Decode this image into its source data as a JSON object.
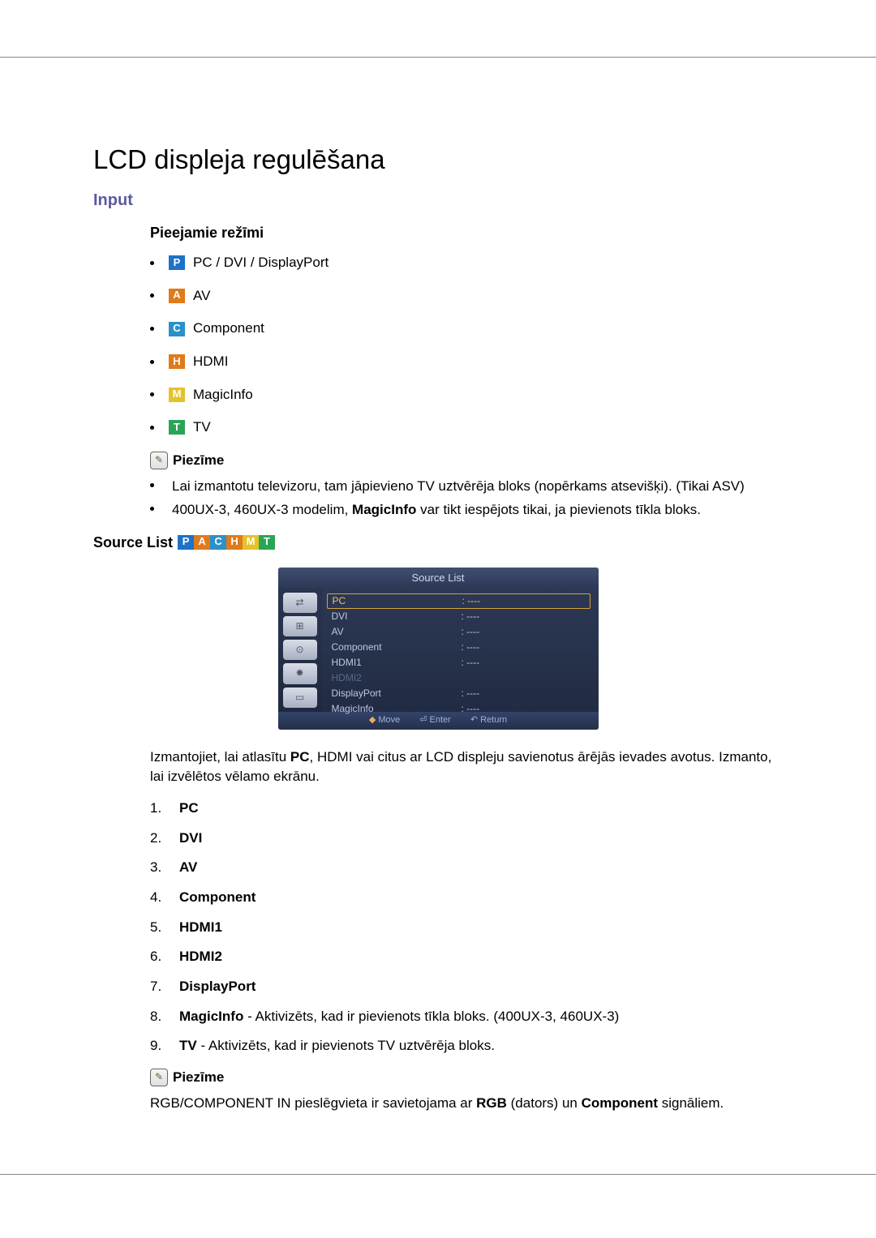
{
  "title": "LCD displeja regulēšana",
  "section_input": "Input",
  "available_modes_heading": "Pieejamie režīmi",
  "mode_badges": {
    "P": {
      "letter": "P",
      "bg": "#1e72c8",
      "label": "PC / DVI / DisplayPort"
    },
    "A": {
      "letter": "A",
      "bg": "#e07a1a",
      "label": "AV"
    },
    "C": {
      "letter": "C",
      "bg": "#2a91c9",
      "label": "Component"
    },
    "H": {
      "letter": "H",
      "bg": "#e07a1a",
      "label": "HDMI"
    },
    "M": {
      "letter": "M",
      "bg": "#e4c22b",
      "label": "MagicInfo"
    },
    "T": {
      "letter": "T",
      "bg": "#2aa556",
      "label": "TV"
    }
  },
  "note_label": "Piezīme",
  "note_items": [
    "Lai izmantotu televizoru, tam jāpievieno TV uztvērēja bloks (nopērkams atsevišķi). (Tikai ASV)",
    "400UX-3, 460UX-3 modelim, MagicInfo var tikt iespējots tikai, ja pievienots tīkla bloks."
  ],
  "note_bold_word": "MagicInfo",
  "source_list_heading": "Source List",
  "osd": {
    "title": "Source List",
    "rows": [
      {
        "label": "PC",
        "value": ": ‑‑‑‑",
        "selected": true
      },
      {
        "label": "DVI",
        "value": ": ‑‑‑‑"
      },
      {
        "label": "AV",
        "value": ": ‑‑‑‑"
      },
      {
        "label": "Component",
        "value": ": ‑‑‑‑"
      },
      {
        "label": "HDMI1",
        "value": ": ‑‑‑‑"
      },
      {
        "label": "HDMI2",
        "value": "",
        "dim": true
      },
      {
        "label": "DisplayPort",
        "value": ": ‑‑‑‑"
      },
      {
        "label": "MagicInfo",
        "value": ": ‑‑‑‑"
      }
    ],
    "footer": {
      "move": "Move",
      "enter": "Enter",
      "return": "Return"
    },
    "side_icons": [
      "⇄",
      "⊞",
      "⊙",
      "✹",
      "▭"
    ]
  },
  "source_para_pre": "Izmantojiet, lai atlasītu ",
  "source_para_bold": "PC",
  "source_para_post": ", HDMI vai citus ar LCD displeju savienotus ārējās ievades avotus. Izmanto, lai izvēlētos vēlamo ekrānu.",
  "source_items": [
    {
      "n": "1.",
      "bold": "PC",
      "rest": ""
    },
    {
      "n": "2.",
      "bold": "DVI",
      "rest": ""
    },
    {
      "n": "3.",
      "bold": "AV",
      "rest": ""
    },
    {
      "n": "4.",
      "bold": "Component",
      "rest": ""
    },
    {
      "n": "5.",
      "bold": "HDMI1",
      "rest": ""
    },
    {
      "n": "6.",
      "bold": "HDMI2",
      "rest": ""
    },
    {
      "n": "7.",
      "bold": "DisplayPort",
      "rest": ""
    },
    {
      "n": "8.",
      "bold": "MagicInfo",
      "rest": " - Aktivizēts, kad ir pievienots tīkla bloks. (400UX-3, 460UX-3)"
    },
    {
      "n": "9.",
      "bold": "TV",
      "rest": " - Aktivizēts, kad ir pievienots TV uztvērēja bloks."
    }
  ],
  "footer_note_pre": "RGB/COMPONENT IN pieslēgvieta ir savietojama ar ",
  "footer_note_b1": "RGB",
  "footer_note_mid": " (dators) un ",
  "footer_note_b2": "Component",
  "footer_note_post": " signāliem."
}
